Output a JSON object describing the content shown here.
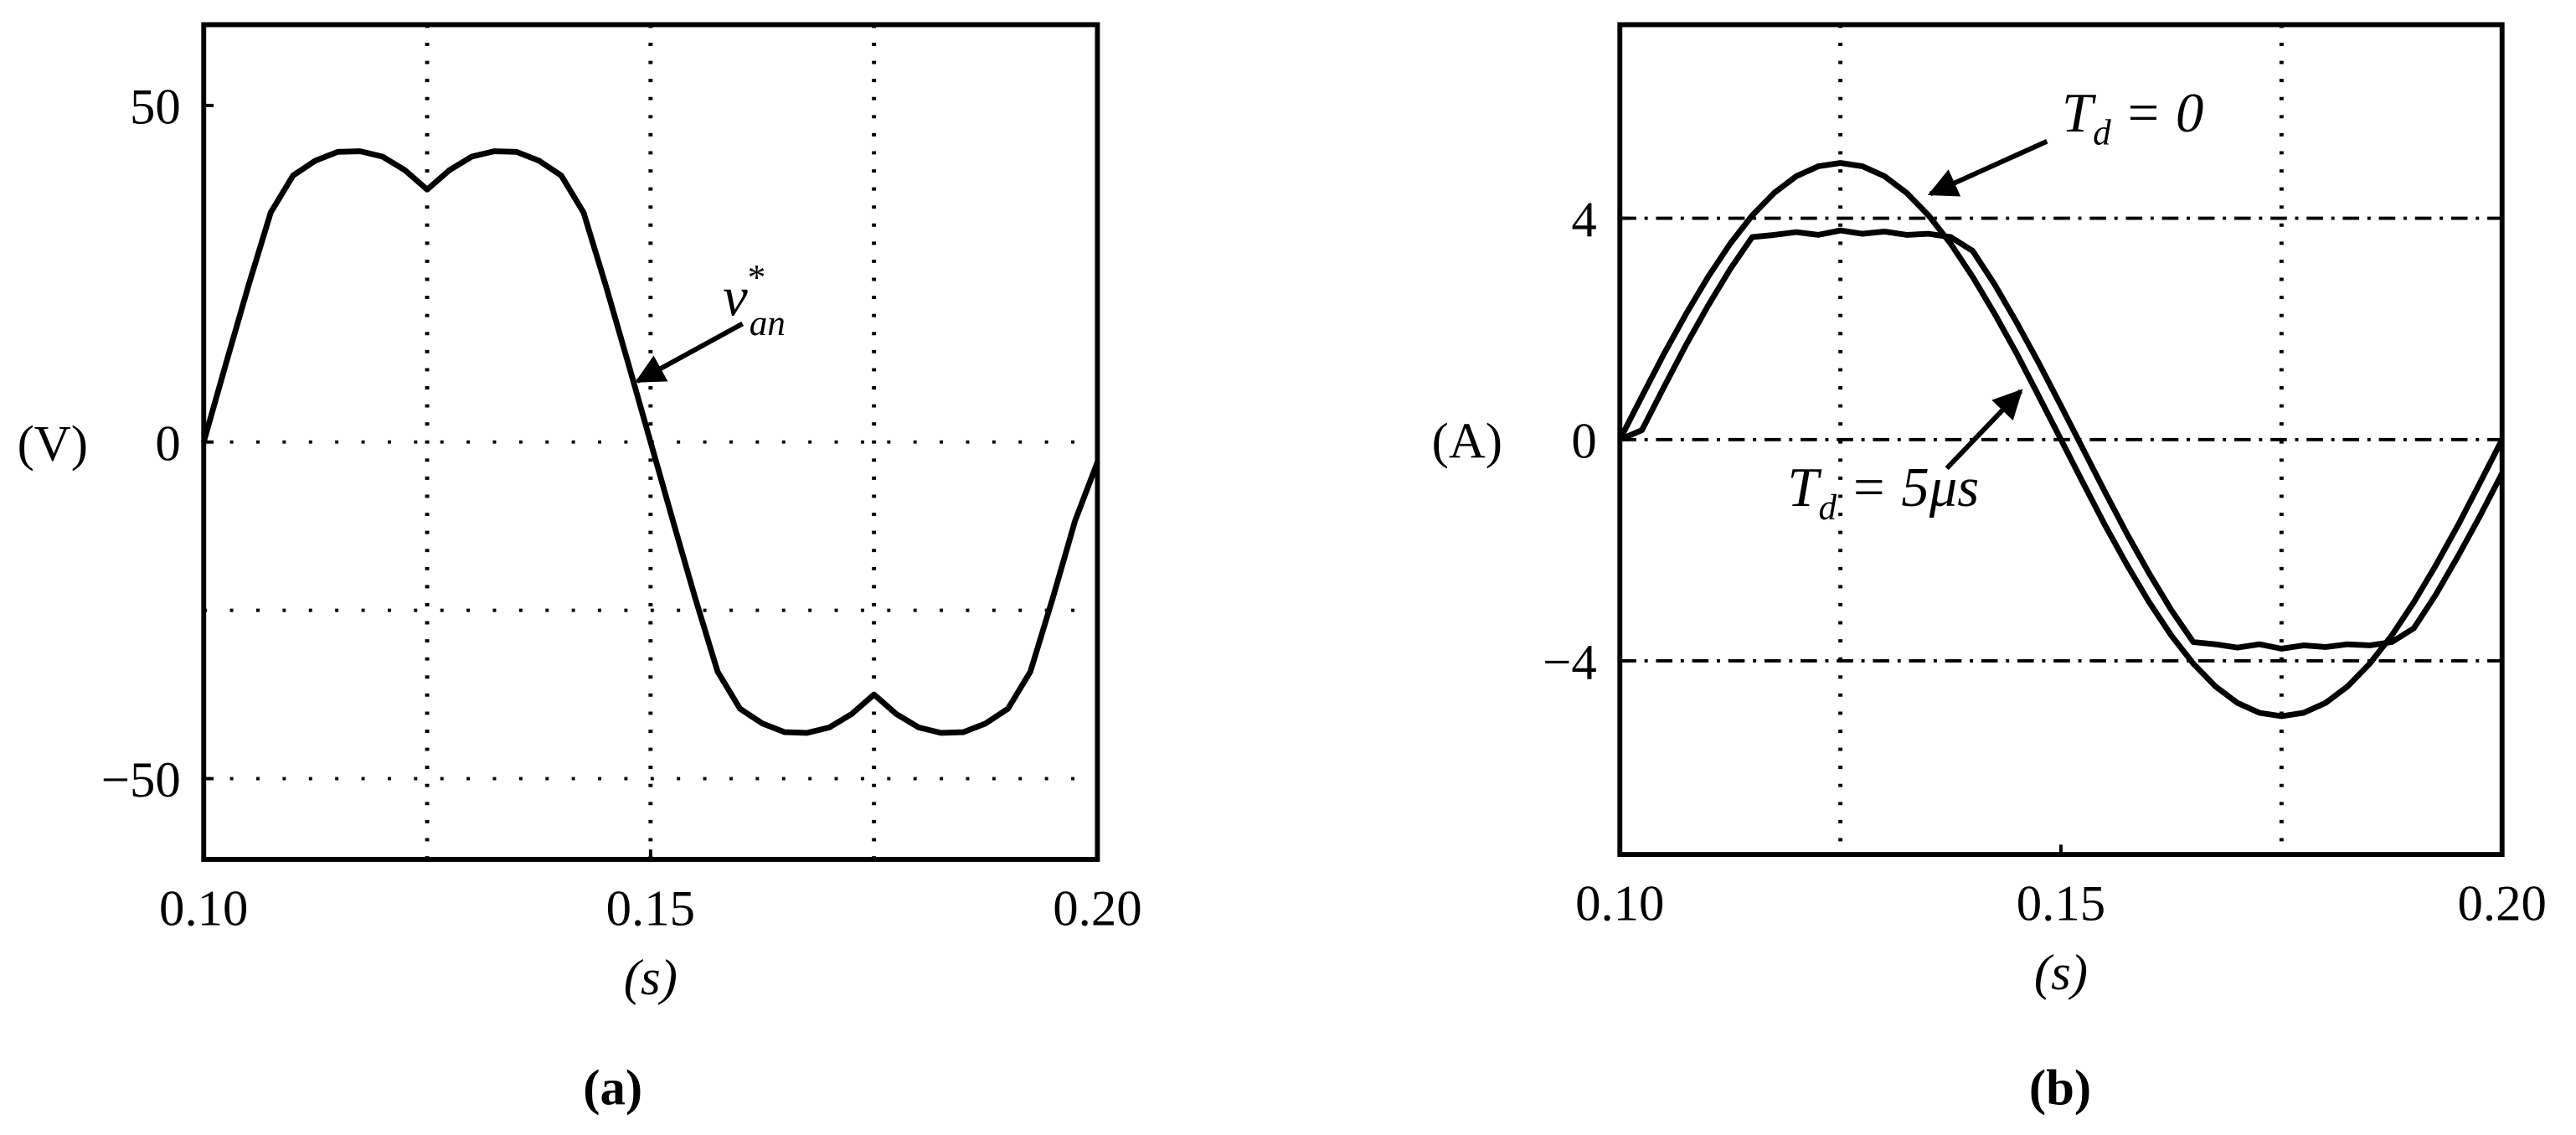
{
  "chart_data": [
    {
      "type": "line",
      "ylabel": "(V)",
      "xlabel": "(s)",
      "caption": "(a)",
      "x": [
        0.1,
        0.1025,
        0.105,
        0.1075,
        0.11,
        0.1125,
        0.115,
        0.1175,
        0.12,
        0.1225,
        0.125,
        0.1275,
        0.13,
        0.1325,
        0.135,
        0.1375,
        0.14,
        0.1425,
        0.145,
        0.1475,
        0.15,
        0.1525,
        0.155,
        0.1575,
        0.16,
        0.1625,
        0.165,
        0.1675,
        0.17,
        0.1725,
        0.175,
        0.1775,
        0.18,
        0.1825,
        0.185,
        0.1875,
        0.19,
        0.1925,
        0.195,
        0.1975,
        0.2
      ],
      "values": [
        0,
        11.7,
        23.2,
        34.1,
        39.6,
        41.8,
        43.1,
        43.2,
        42.4,
        40.4,
        37.5,
        40.4,
        42.4,
        43.2,
        43.1,
        41.8,
        39.6,
        34.1,
        23.2,
        11.7,
        0,
        -11.7,
        -23.2,
        -34.1,
        -39.6,
        -41.8,
        -43.1,
        -43.2,
        -42.4,
        -40.4,
        -37.5,
        -40.4,
        -42.4,
        -43.2,
        -43.1,
        -41.8,
        -39.6,
        -34.1,
        -23.2,
        -11.7,
        -3
      ],
      "color": "#000000",
      "xlim": [
        0.1,
        0.2
      ],
      "ylim": [
        -62,
        62
      ],
      "xticks": [
        {
          "value": 0.1,
          "label": "0.10"
        },
        {
          "value": 0.15,
          "label": "0.15"
        },
        {
          "value": 0.2,
          "label": "0.20"
        }
      ],
      "yticks": [
        50,
        0,
        {
          "value": -50,
          "label": "−50"
        }
      ],
      "xgrid": [
        0.125,
        0.15,
        0.175
      ],
      "ygrid": [
        0,
        -25,
        -50
      ],
      "annotations": [
        {
          "main": "v",
          "sub": "an",
          "sup": "*"
        }
      ]
    },
    {
      "type": "line",
      "ylabel": "(A)",
      "xlabel": "(s)",
      "caption": "(b)",
      "x": [
        0.1,
        0.1025,
        0.105,
        0.1075,
        0.11,
        0.1125,
        0.115,
        0.1175,
        0.12,
        0.1225,
        0.125,
        0.1275,
        0.13,
        0.1325,
        0.135,
        0.1375,
        0.14,
        0.1425,
        0.145,
        0.1475,
        0.15,
        0.1525,
        0.155,
        0.1575,
        0.16,
        0.1625,
        0.165,
        0.1675,
        0.17,
        0.1725,
        0.175,
        0.1775,
        0.18,
        0.1825,
        0.185,
        0.1875,
        0.19,
        0.1925,
        0.195,
        0.1975,
        0.2
      ],
      "series": [
        {
          "color": "#000000",
          "values": [
            0,
            0.78,
            1.55,
            2.27,
            2.94,
            3.54,
            4.05,
            4.46,
            4.76,
            4.94,
            5,
            4.94,
            4.76,
            4.46,
            4.05,
            3.54,
            2.94,
            2.27,
            1.55,
            0.78,
            0,
            -0.78,
            -1.55,
            -2.27,
            -2.94,
            -3.54,
            -4.05,
            -4.46,
            -4.76,
            -4.94,
            -5,
            -4.94,
            -4.76,
            -4.46,
            -4.05,
            -3.54,
            -2.94,
            -2.27,
            -1.55,
            -0.78,
            0
          ]
        },
        {
          "color": "#000000",
          "values": [
            0,
            0.17,
            0.95,
            1.71,
            2.42,
            3.08,
            3.66,
            3.7,
            3.75,
            3.7,
            3.78,
            3.72,
            3.76,
            3.7,
            3.72,
            3.66,
            3.41,
            2.8,
            2.11,
            1.38,
            0.61,
            -0.17,
            -0.95,
            -1.71,
            -2.42,
            -3.08,
            -3.66,
            -3.7,
            -3.76,
            -3.7,
            -3.78,
            -3.72,
            -3.75,
            -3.7,
            -3.72,
            -3.66,
            -3.41,
            -2.8,
            -2.11,
            -1.38,
            -0.61
          ]
        }
      ],
      "xlim": [
        0.1,
        0.2
      ],
      "ylim": [
        -7.5,
        7.5
      ],
      "xticks": [
        {
          "value": 0.1,
          "label": "0.10"
        },
        {
          "value": 0.15,
          "label": "0.15"
        },
        {
          "value": 0.2,
          "label": "0.20"
        }
      ],
      "yticks": [
        4,
        0,
        {
          "value": -4,
          "label": "−4"
        }
      ],
      "xgrid": [
        0.125,
        0.175
      ],
      "ygrid": [
        4,
        0,
        -4
      ],
      "annotations": [
        {
          "main": "T",
          "sub": "d",
          "suffix": "= 0"
        },
        {
          "main": "T",
          "sub": "d",
          "suffix": "= 5μs"
        }
      ]
    }
  ]
}
